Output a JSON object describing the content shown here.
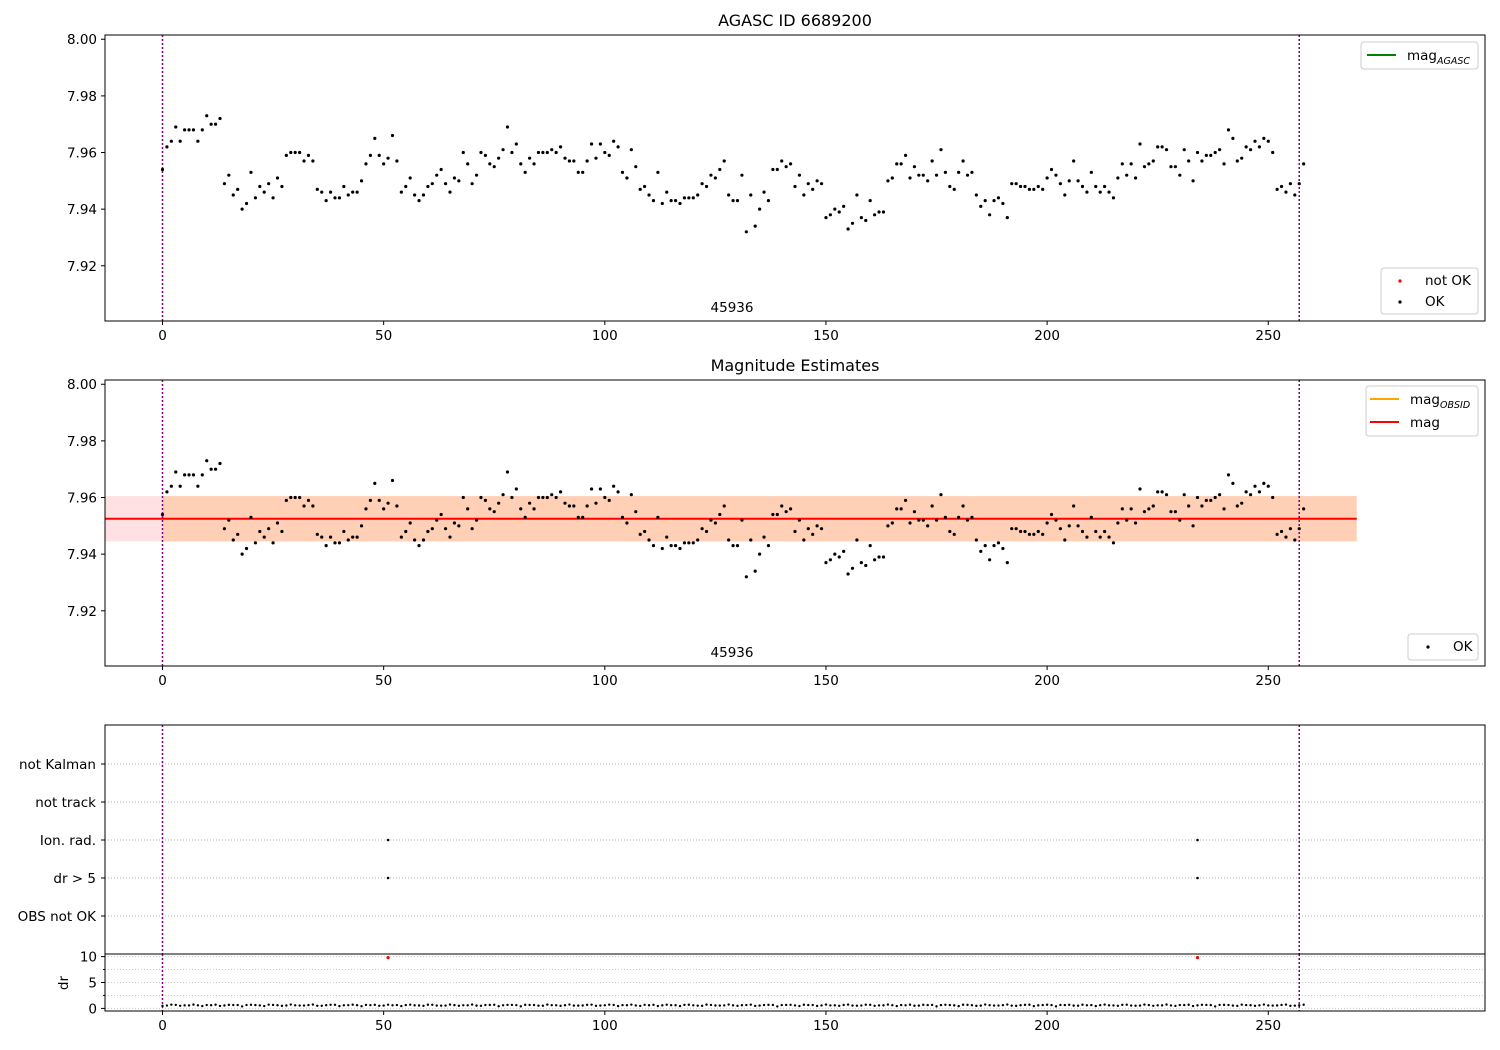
{
  "chart_data": [
    {
      "type": "scatter",
      "title": "AGASC ID 6689200",
      "xlim": [
        -13,
        299
      ],
      "ylim": [
        7.9005,
        8.0015
      ],
      "x_ticks": [
        "0",
        "50",
        "100",
        "150",
        "200",
        "250"
      ],
      "y_ticks": [
        "7.92",
        "7.94",
        "7.96",
        "7.98",
        "8.00"
      ],
      "obsid_label": "45936",
      "obs_bounds": [
        0,
        257
      ],
      "legend_top": [
        {
          "base": "mag",
          "sub": "AGASC",
          "color": "#008000"
        }
      ],
      "legend_bottom": [
        {
          "label": "not OK",
          "color": "#ff0000"
        },
        {
          "label": "OK",
          "color": "#000000"
        }
      ],
      "series": [
        {
          "name": "OK",
          "y": [
            7.954,
            7.962,
            7.964,
            7.969,
            7.964,
            7.968,
            7.968,
            7.968,
            7.964,
            7.968,
            7.973,
            7.97,
            7.97,
            7.972,
            7.949,
            7.952,
            7.945,
            7.947,
            7.94,
            7.942,
            7.953,
            7.944,
            7.948,
            7.946,
            7.949,
            7.944,
            7.951,
            7.948,
            7.959,
            7.96,
            7.96,
            7.96,
            7.957,
            7.959,
            7.957,
            7.947,
            7.946,
            7.943,
            7.946,
            7.944,
            7.944,
            7.948,
            7.945,
            7.946,
            7.946,
            7.95,
            7.956,
            7.959,
            7.965,
            7.959,
            7.956,
            7.958,
            7.966,
            7.957,
            7.946,
            7.948,
            7.951,
            7.945,
            7.943,
            7.945,
            7.948,
            7.949,
            7.952,
            7.954,
            7.949,
            7.946,
            7.951,
            7.95,
            7.96,
            7.956,
            7.949,
            7.952,
            7.96,
            7.959,
            7.956,
            7.955,
            7.958,
            7.961,
            7.969,
            7.96,
            7.963,
            7.956,
            7.953,
            7.958,
            7.956,
            7.96,
            7.96,
            7.96,
            7.961,
            7.96,
            7.962,
            7.958,
            7.957,
            7.957,
            7.953,
            7.953,
            7.957,
            7.963,
            7.958,
            7.963,
            7.96,
            7.959,
            7.964,
            7.962,
            7.953,
            7.951,
            7.961,
            7.955,
            7.947,
            7.948,
            7.945,
            7.943,
            7.953,
            7.942,
            7.946,
            7.943,
            7.943,
            7.942,
            7.944,
            7.944,
            7.944,
            7.945,
            7.949,
            7.948,
            7.952,
            7.951,
            7.954,
            7.957,
            7.945,
            7.943,
            7.943,
            7.952,
            7.932,
            7.945,
            7.934,
            7.94,
            7.946,
            7.943,
            7.954,
            7.954,
            7.957,
            7.955,
            7.956,
            7.948,
            7.952,
            7.945,
            7.949,
            7.947,
            7.95,
            7.949,
            7.937,
            7.938,
            7.94,
            7.939,
            7.941,
            7.933,
            7.935,
            7.945,
            7.937,
            7.936,
            7.943,
            7.938,
            7.939,
            7.939,
            7.95,
            7.951,
            7.956,
            7.956,
            7.959,
            7.951,
            7.955,
            7.952,
            7.952,
            7.95,
            7.957,
            7.952,
            7.961,
            7.953,
            7.948,
            7.947,
            7.953,
            7.957,
            7.952,
            7.953,
            7.945,
            7.941,
            7.943,
            7.938,
            7.943,
            7.944,
            7.942,
            7.937,
            7.949,
            7.949,
            7.948,
            7.948,
            7.947,
            7.947,
            7.948,
            7.947,
            7.951,
            7.954,
            7.952,
            7.949,
            7.945,
            7.95,
            7.957,
            7.95,
            7.948,
            7.946,
            7.953,
            7.948,
            7.946,
            7.948,
            7.946,
            7.944,
            7.951,
            7.956,
            7.952,
            7.956,
            7.951,
            7.963,
            7.955,
            7.956,
            7.957,
            7.962,
            7.962,
            7.961,
            7.955,
            7.955,
            7.952,
            7.961,
            7.957,
            7.95,
            7.96,
            7.957,
            7.959,
            7.959,
            7.96,
            7.961,
            7.956,
            7.968,
            7.965,
            7.957,
            7.958,
            7.962,
            7.961,
            7.964,
            7.962,
            7.965,
            7.964,
            7.96,
            7.947,
            7.948,
            7.946,
            7.949,
            7.945,
            7.949,
            7.956
          ]
        }
      ]
    },
    {
      "type": "scatter",
      "title": "Magnitude Estimates",
      "xlim": [
        -13,
        299
      ],
      "ylim": [
        7.9005,
        8.0015
      ],
      "x_ticks": [
        "0",
        "50",
        "100",
        "150",
        "200",
        "250"
      ],
      "y_ticks": [
        "7.92",
        "7.94",
        "7.96",
        "7.98",
        "8.00"
      ],
      "obsid_label": "45936",
      "mag": 7.9525,
      "band": [
        7.9445,
        7.9605
      ],
      "band_x_end": 270,
      "legend_top": [
        {
          "base": "mag",
          "sub": "OBSID",
          "color": "#ffa500"
        },
        {
          "base": "mag",
          "sub": "",
          "color": "#ff0000"
        }
      ],
      "legend_bottom": [
        {
          "label": "OK",
          "color": "#000000"
        }
      ]
    },
    {
      "type": "scatter",
      "title": "",
      "xlim": [
        -13,
        299
      ],
      "x_ticks": [
        "0",
        "50",
        "100",
        "150",
        "200",
        "250"
      ],
      "categories": [
        "not Kalman",
        "not track",
        "Ion. rad.",
        "dr > 5",
        "OBS not OK"
      ],
      "flags": [
        {
          "category": "Ion. rad.",
          "x": [
            51,
            234
          ]
        },
        {
          "category": "dr > 5",
          "x": [
            51,
            234
          ]
        }
      ]
    },
    {
      "type": "scatter",
      "title": "",
      "ylabel": "dr",
      "xlim": [
        -13,
        299
      ],
      "ylim": [
        -0.5,
        10.5
      ],
      "y_ticks": [
        "0",
        "5",
        "10"
      ],
      "x_ticks": [
        "0",
        "50",
        "100",
        "150",
        "200",
        "250"
      ],
      "outliers": [
        {
          "x": 51,
          "y": 9.8
        },
        {
          "x": 234,
          "y": 9.8
        }
      ]
    }
  ]
}
